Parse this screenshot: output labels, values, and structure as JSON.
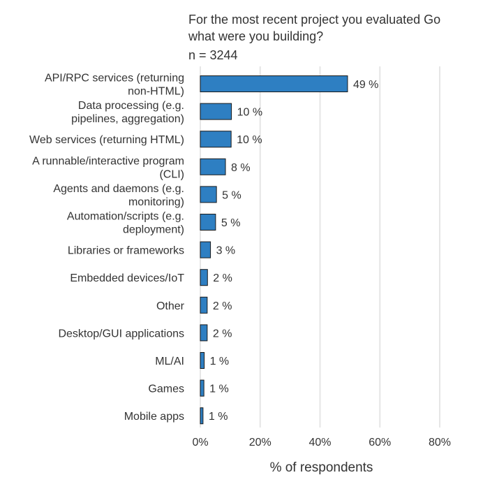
{
  "chart_data": {
    "type": "bar",
    "orientation": "horizontal",
    "title_lines": [
      "For the most recent project you evaluated Go",
      "what were you building?"
    ],
    "subtitle": "n = 3244",
    "xlabel": "% of respondents",
    "ylabel": "",
    "xlim": [
      0,
      80
    ],
    "x_ticks": [
      0,
      20,
      40,
      60,
      80
    ],
    "x_tick_labels": [
      "0%",
      "20%",
      "40%",
      "60%",
      "80%"
    ],
    "grid": true,
    "bar_color": "#2e7fc2",
    "bar_edge_color": "#1a1a1a",
    "value_suffix": " %",
    "categories": [
      [
        "API/RPC services (returning",
        "non-HTML)"
      ],
      [
        "Data processing (e.g.",
        "pipelines, aggregation)"
      ],
      [
        "Web services (returning HTML)"
      ],
      [
        "A runnable/interactive program",
        "(CLI)"
      ],
      [
        "Agents and daemons (e.g.",
        "monitoring)"
      ],
      [
        "Automation/scripts (e.g.",
        "deployment)"
      ],
      [
        "Libraries or frameworks"
      ],
      [
        "Embedded devices/IoT"
      ],
      [
        "Other"
      ],
      [
        "Desktop/GUI applications"
      ],
      [
        "ML/AI"
      ],
      [
        "Games"
      ],
      [
        "Mobile apps"
      ]
    ],
    "values": [
      49,
      10,
      10,
      8,
      5,
      5,
      3,
      2,
      2,
      2,
      1,
      1,
      1
    ],
    "exact_values": [
      49.2,
      10.4,
      10.3,
      8.4,
      5.4,
      5.1,
      3.4,
      2.4,
      2.3,
      2.3,
      1.3,
      1.2,
      0.9
    ]
  }
}
